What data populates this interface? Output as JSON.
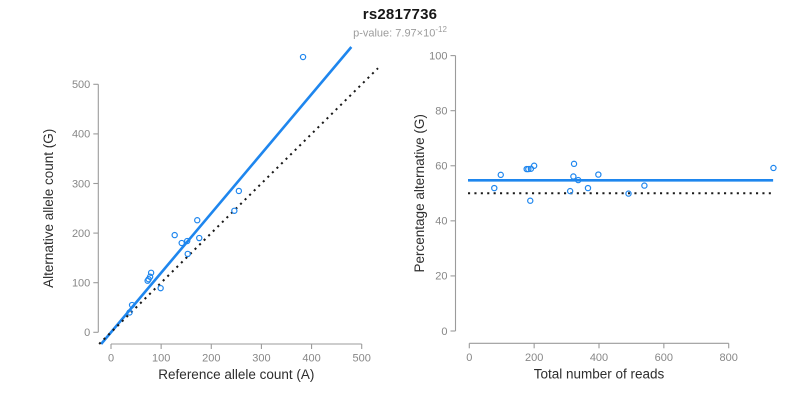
{
  "header": {
    "title": "rs2817736",
    "subtitle_base": "p-value: 7.97×10",
    "subtitle_exponent": "-12"
  },
  "colors": {
    "accent_blue": "#1e86ee",
    "line_black": "#1a1a1a",
    "axis_line_gray": "#9b9b9b",
    "tick_label_gray": "#878787",
    "axis_title_dark": "#2e2e2e"
  },
  "chart_data": [
    {
      "type": "scatter",
      "title": "",
      "xlabel": "Reference allele count (A)",
      "ylabel": "Alternative allele count (G)",
      "xlim": [
        0,
        500
      ],
      "ylim": [
        0,
        500
      ],
      "xticks": [
        0,
        100,
        200,
        300,
        400,
        500
      ],
      "yticks": [
        0,
        100,
        200,
        300,
        400,
        500
      ],
      "grid": false,
      "points": [
        [
          383,
          555
        ],
        [
          255,
          285
        ],
        [
          246,
          245
        ],
        [
          172,
          226
        ],
        [
          176,
          190
        ],
        [
          152,
          184
        ],
        [
          141,
          180
        ],
        [
          153,
          158
        ],
        [
          127,
          196
        ],
        [
          99,
          89
        ],
        [
          80,
          120
        ],
        [
          78,
          112
        ],
        [
          75,
          107
        ],
        [
          73,
          104
        ],
        [
          42,
          55
        ],
        [
          37,
          40
        ]
      ],
      "lines": [
        {
          "name": "fit-line",
          "style": "solid",
          "color_key": "accent_blue",
          "slope": 1.2,
          "intercept": 0
        },
        {
          "name": "identity-line",
          "style": "dotted",
          "color_key": "line_black",
          "slope": 1,
          "intercept": 0
        }
      ]
    },
    {
      "type": "scatter",
      "title": "",
      "xlabel": "Total number of reads",
      "ylabel": "Percentage alternative (G)",
      "xlim": [
        0,
        940
      ],
      "ylim": [
        0,
        100
      ],
      "xticks": [
        0,
        200,
        400,
        600,
        800
      ],
      "yticks": [
        0,
        20,
        40,
        60,
        80,
        100
      ],
      "grid": false,
      "points": [
        [
          938,
          59.2
        ],
        [
          540,
          52.8
        ],
        [
          491,
          49.9
        ],
        [
          398,
          56.8
        ],
        [
          366,
          51.9
        ],
        [
          336,
          54.8
        ],
        [
          321,
          56.1
        ],
        [
          311,
          50.8
        ],
        [
          323,
          60.7
        ],
        [
          188,
          47.3
        ],
        [
          200,
          60.0
        ],
        [
          190,
          58.9
        ],
        [
          182,
          58.8
        ],
        [
          177,
          58.8
        ],
        [
          97,
          56.7
        ],
        [
          77,
          51.9
        ]
      ],
      "lines": [
        {
          "name": "mean-percentage-line",
          "style": "solid",
          "color_key": "accent_blue",
          "y": 54.7,
          "x_domain": [
            -4,
            937
          ]
        },
        {
          "name": "fifty-percent-line",
          "style": "dotted",
          "color_key": "line_black",
          "y": 50,
          "x_domain": [
            -4,
            930
          ]
        }
      ]
    }
  ]
}
